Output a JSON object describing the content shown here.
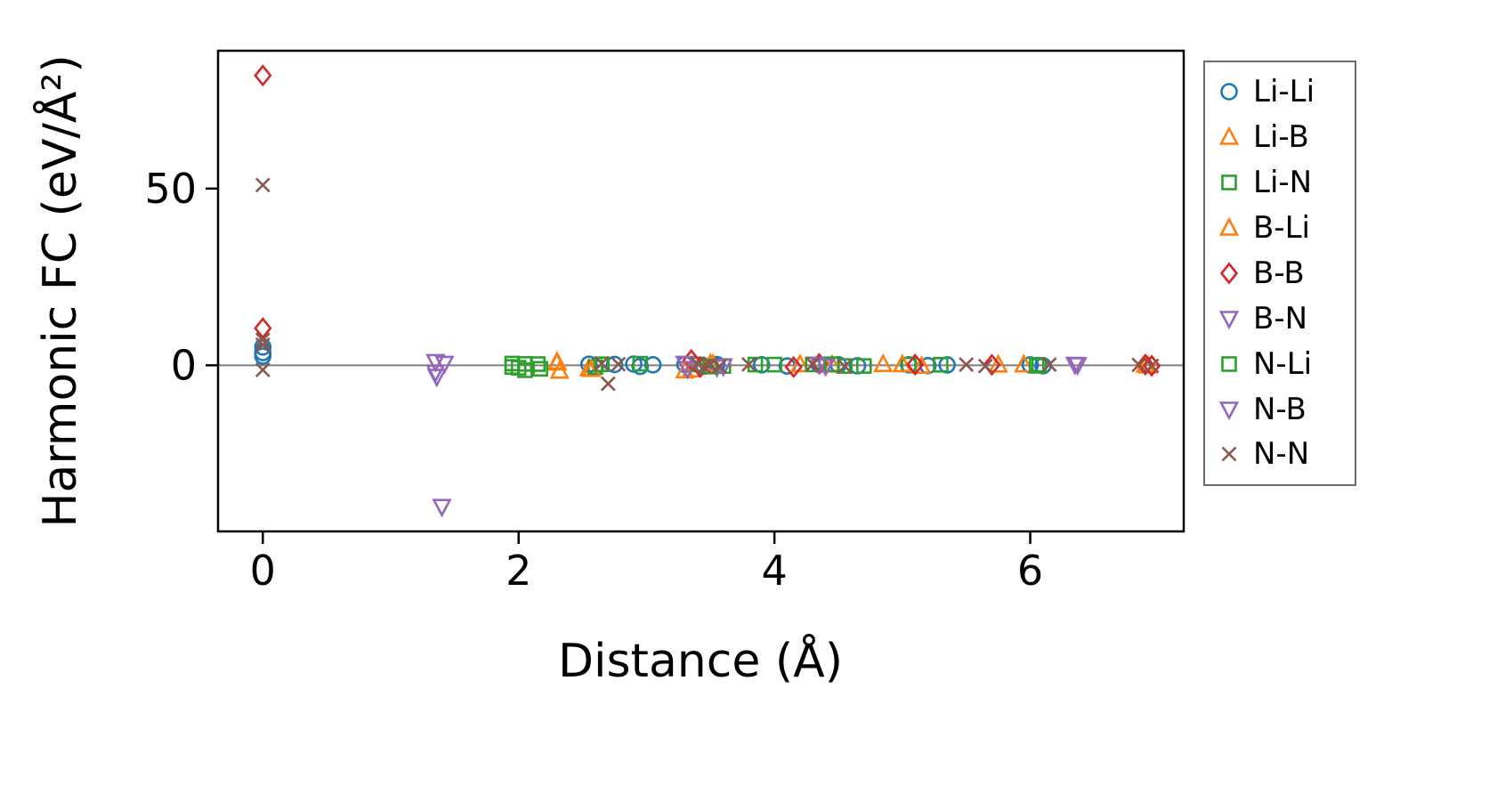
{
  "figure": {
    "background": "#ffffff"
  },
  "chart_data": {
    "type": "scatter",
    "title": "",
    "xlabel": "Distance (Å)",
    "ylabel": "Harmonic FC (eV/Å²)",
    "xlim": [
      -0.35,
      7.2
    ],
    "ylim": [
      -47,
      89
    ],
    "xticks": [
      0,
      2,
      4,
      6
    ],
    "yticks": [
      0,
      50
    ],
    "grid": false,
    "zero_line": true,
    "zero_line_color": "#7f7f7f",
    "legend_position": "right-outside",
    "series": [
      {
        "name": "Li-Li",
        "marker": "circle",
        "color": "#1f77b4",
        "points": [
          [
            0,
            5.2
          ],
          [
            0,
            3.6
          ],
          [
            0,
            2.6
          ],
          [
            2.55,
            0.3
          ],
          [
            2.6,
            -0.4
          ],
          [
            2.75,
            0.25
          ],
          [
            2.9,
            0.35
          ],
          [
            2.95,
            -0.3
          ],
          [
            3.05,
            0.15
          ],
          [
            3.3,
            0.25
          ],
          [
            3.45,
            -0.25
          ],
          [
            3.55,
            0.2
          ],
          [
            3.9,
            0.15
          ],
          [
            4.1,
            -0.2
          ],
          [
            4.35,
            0.25
          ],
          [
            4.5,
            0.15
          ],
          [
            4.65,
            -0.15
          ],
          [
            5.05,
            0.15
          ],
          [
            5.2,
            -0.1
          ],
          [
            5.35,
            0.12
          ],
          [
            6.0,
            0.12
          ],
          [
            6.1,
            -0.12
          ]
        ]
      },
      {
        "name": "Li-B",
        "marker": "triangle-up",
        "color": "#ff7f0e",
        "points": [
          [
            2.3,
            1.0
          ],
          [
            2.32,
            -1.6
          ],
          [
            2.55,
            -0.9
          ],
          [
            3.3,
            -1.5
          ],
          [
            3.5,
            0.5
          ],
          [
            4.2,
            0.25
          ],
          [
            4.85,
            0.3
          ],
          [
            5.15,
            -0.2
          ],
          [
            5.95,
            0.2
          ],
          [
            6.9,
            0.15
          ]
        ]
      },
      {
        "name": "Li-N",
        "marker": "square",
        "color": "#2ca02c",
        "points": [
          [
            1.95,
            0.5
          ],
          [
            2.0,
            -0.7
          ],
          [
            2.05,
            -1.4
          ],
          [
            2.15,
            0.35
          ],
          [
            2.6,
            -0.5
          ],
          [
            2.95,
            0.45
          ],
          [
            3.4,
            0.25
          ],
          [
            3.6,
            -0.2
          ],
          [
            3.85,
            0.2
          ],
          [
            4.3,
            0.25
          ],
          [
            4.55,
            -0.2
          ],
          [
            5.05,
            0.2
          ],
          [
            6.05,
            0.15
          ]
        ]
      },
      {
        "name": "B-Li",
        "marker": "triangle-up",
        "color": "#ff7f0e",
        "points": [
          [
            2.3,
            0.7
          ],
          [
            2.57,
            -1.1
          ],
          [
            3.35,
            -1.2
          ],
          [
            3.52,
            0.35
          ],
          [
            4.45,
            0.15
          ],
          [
            5.0,
            0.25
          ],
          [
            5.75,
            0.15
          ],
          [
            6.92,
            -0.1
          ]
        ]
      },
      {
        "name": "B-B",
        "marker": "diamond",
        "color": "#d62728",
        "points": [
          [
            0,
            82
          ],
          [
            0,
            10.5
          ],
          [
            3.35,
            1.5
          ],
          [
            3.42,
            -0.5
          ],
          [
            4.15,
            -0.5
          ],
          [
            4.35,
            0.4
          ],
          [
            5.1,
            0.2
          ],
          [
            5.7,
            0.15
          ],
          [
            6.9,
            0.2
          ],
          [
            6.95,
            -0.15
          ]
        ]
      },
      {
        "name": "B-N",
        "marker": "triangle-down",
        "color": "#9467bd",
        "points": [
          [
            1.35,
            1.0
          ],
          [
            1.35,
            -2.0
          ],
          [
            1.4,
            -40
          ],
          [
            3.3,
            0.5
          ],
          [
            3.55,
            -0.55
          ],
          [
            4.35,
            0.25
          ],
          [
            6.35,
            0.2
          ]
        ]
      },
      {
        "name": "N-Li",
        "marker": "square",
        "color": "#2ca02c",
        "points": [
          [
            1.95,
            -0.45
          ],
          [
            2.05,
            0.4
          ],
          [
            2.17,
            -1.0
          ],
          [
            2.65,
            0.3
          ],
          [
            3.5,
            -0.35
          ],
          [
            4.0,
            0.2
          ],
          [
            4.45,
            0.3
          ],
          [
            4.7,
            -0.2
          ],
          [
            5.3,
            0.15
          ],
          [
            6.07,
            -0.15
          ]
        ]
      },
      {
        "name": "N-B",
        "marker": "triangle-down",
        "color": "#9467bd",
        "points": [
          [
            1.36,
            -3.2
          ],
          [
            1.42,
            0.5
          ],
          [
            3.32,
            -1.0
          ],
          [
            3.6,
            -0.3
          ],
          [
            4.4,
            -0.25
          ],
          [
            6.37,
            0.12
          ]
        ]
      },
      {
        "name": "N-N",
        "marker": "x",
        "color": "#8c564b",
        "points": [
          [
            0,
            51
          ],
          [
            0,
            7.2
          ],
          [
            0,
            5.8
          ],
          [
            0,
            -1.3
          ],
          [
            2.65,
            0.5
          ],
          [
            2.7,
            -5.2
          ],
          [
            2.78,
            0.3
          ],
          [
            3.4,
            0.35
          ],
          [
            3.45,
            -0.4
          ],
          [
            3.5,
            0.25
          ],
          [
            3.57,
            -0.3
          ],
          [
            3.8,
            0.25
          ],
          [
            4.3,
            0.3
          ],
          [
            4.55,
            -0.25
          ],
          [
            5.5,
            0.2
          ],
          [
            5.65,
            -0.2
          ],
          [
            6.15,
            0.2
          ],
          [
            6.85,
            0.15
          ],
          [
            6.95,
            -0.15
          ]
        ]
      }
    ]
  }
}
